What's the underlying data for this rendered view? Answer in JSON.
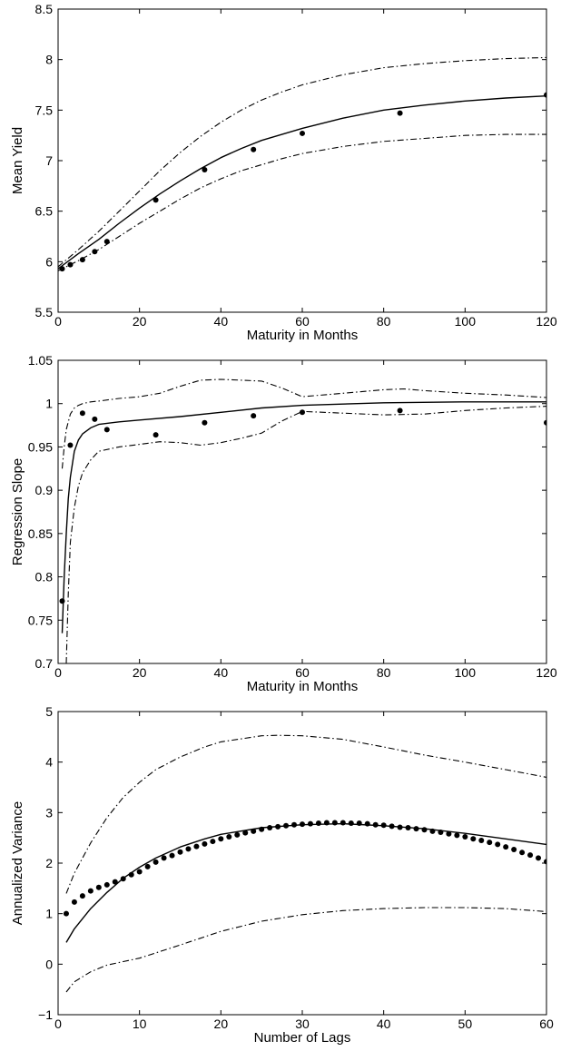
{
  "chart_data": [
    {
      "type": "line",
      "xlabel": "Maturity in Months",
      "ylabel": "Mean Yield",
      "xlim": [
        0,
        120
      ],
      "ylim": [
        5.5,
        8.5
      ],
      "xticks": [
        0,
        20,
        40,
        60,
        80,
        100,
        120
      ],
      "yticks": [
        5.5,
        6,
        6.5,
        7,
        7.5,
        8,
        8.5
      ],
      "xtick_labels": [
        "0",
        "20",
        "40",
        "60",
        "80",
        "100",
        "120"
      ],
      "ytick_labels": [
        "5.5",
        "6",
        "6.5",
        "7",
        "7.5",
        "8",
        "8.5"
      ],
      "series": [
        {
          "style": "solid",
          "x": [
            0,
            5,
            10,
            15,
            20,
            25,
            30,
            35,
            40,
            45,
            50,
            55,
            60,
            70,
            80,
            90,
            100,
            110,
            120
          ],
          "y": [
            5.93,
            6.08,
            6.22,
            6.38,
            6.53,
            6.67,
            6.8,
            6.92,
            7.03,
            7.12,
            7.2,
            7.26,
            7.32,
            7.42,
            7.5,
            7.55,
            7.59,
            7.62,
            7.64
          ]
        },
        {
          "style": "dashdot",
          "x": [
            0,
            5,
            10,
            15,
            20,
            25,
            30,
            35,
            40,
            45,
            50,
            55,
            60,
            70,
            80,
            90,
            100,
            110,
            120
          ],
          "y": [
            5.95,
            6.12,
            6.3,
            6.5,
            6.7,
            6.9,
            7.08,
            7.24,
            7.38,
            7.5,
            7.6,
            7.68,
            7.75,
            7.85,
            7.92,
            7.96,
            7.99,
            8.01,
            8.02
          ]
        },
        {
          "style": "dashdot",
          "x": [
            0,
            5,
            10,
            15,
            20,
            25,
            30,
            35,
            40,
            45,
            50,
            55,
            60,
            70,
            80,
            90,
            100,
            110,
            120
          ],
          "y": [
            5.91,
            6.01,
            6.12,
            6.25,
            6.38,
            6.5,
            6.62,
            6.73,
            6.82,
            6.9,
            6.96,
            7.02,
            7.07,
            7.14,
            7.19,
            7.22,
            7.25,
            7.26,
            7.26
          ]
        },
        {
          "style": "dots",
          "x": [
            1,
            3,
            6,
            9,
            12,
            24,
            36,
            48,
            60,
            84,
            120
          ],
          "y": [
            5.93,
            5.97,
            6.02,
            6.1,
            6.2,
            6.61,
            6.91,
            7.11,
            7.27,
            7.47,
            7.65
          ]
        }
      ]
    },
    {
      "type": "line",
      "xlabel": "Maturity in Months",
      "ylabel": "Regression Slope",
      "xlim": [
        0,
        120
      ],
      "ylim": [
        0.7,
        1.05
      ],
      "xticks": [
        0,
        20,
        40,
        60,
        80,
        100,
        120
      ],
      "yticks": [
        0.7,
        0.75,
        0.8,
        0.85,
        0.9,
        0.95,
        1,
        1.05
      ],
      "xtick_labels": [
        "0",
        "20",
        "40",
        "60",
        "80",
        "100",
        "120"
      ],
      "ytick_labels": [
        "0.7",
        "0.75",
        "0.8",
        "0.85",
        "0.9",
        "0.95",
        "1",
        "1.05"
      ],
      "series": [
        {
          "style": "solid",
          "x": [
            1,
            1.5,
            2,
            2.5,
            3,
            4,
            5,
            6,
            8,
            10,
            15,
            20,
            30,
            40,
            50,
            60,
            80,
            100,
            120
          ],
          "y": [
            0.735,
            0.8,
            0.85,
            0.89,
            0.915,
            0.945,
            0.958,
            0.965,
            0.972,
            0.976,
            0.979,
            0.981,
            0.985,
            0.99,
            0.995,
            0.998,
            1.001,
            1.002,
            1.002
          ]
        },
        {
          "style": "dashdot",
          "x": [
            1,
            1.5,
            2,
            3,
            4,
            5,
            6,
            8,
            10,
            15,
            20,
            25,
            30,
            35,
            40,
            45,
            50,
            55,
            60,
            70,
            80,
            85,
            90,
            100,
            110,
            120
          ],
          "y": [
            0.925,
            0.95,
            0.97,
            0.988,
            0.995,
            0.998,
            1.0,
            1.002,
            1.003,
            1.006,
            1.008,
            1.012,
            1.02,
            1.027,
            1.028,
            1.027,
            1.026,
            1.018,
            1.008,
            1.012,
            1.016,
            1.017,
            1.015,
            1.012,
            1.01,
            1.007
          ]
        },
        {
          "style": "dashdot",
          "x": [
            2,
            2.5,
            3,
            4,
            5,
            6,
            8,
            10,
            15,
            20,
            25,
            30,
            35,
            40,
            45,
            50,
            55,
            60,
            70,
            80,
            90,
            100,
            110,
            120
          ],
          "y": [
            0.7,
            0.78,
            0.84,
            0.88,
            0.905,
            0.92,
            0.935,
            0.945,
            0.95,
            0.953,
            0.956,
            0.955,
            0.952,
            0.955,
            0.96,
            0.966,
            0.98,
            0.991,
            0.989,
            0.987,
            0.988,
            0.992,
            0.995,
            0.997
          ]
        },
        {
          "style": "dots",
          "x": [
            1,
            3,
            6,
            9,
            12,
            24,
            36,
            48,
            60,
            84,
            120
          ],
          "y": [
            0.772,
            0.952,
            0.989,
            0.982,
            0.97,
            0.964,
            0.978,
            0.986,
            0.99,
            0.992,
            0.978
          ]
        }
      ]
    },
    {
      "type": "line",
      "xlabel": "Number of Lags",
      "ylabel": "Annualized Variance",
      "xlim": [
        0,
        60
      ],
      "ylim": [
        -1,
        5
      ],
      "xticks": [
        0,
        10,
        20,
        30,
        40,
        50,
        60
      ],
      "yticks": [
        -1,
        0,
        1,
        2,
        3,
        4,
        5
      ],
      "xtick_labels": [
        "0",
        "10",
        "20",
        "30",
        "40",
        "50",
        "60"
      ],
      "ytick_labels": [
        "−1",
        "0",
        "1",
        "2",
        "3",
        "4",
        "5"
      ],
      "series": [
        {
          "style": "solid",
          "x": [
            1,
            2,
            4,
            6,
            8,
            10,
            12,
            15,
            18,
            20,
            25,
            30,
            35,
            40,
            45,
            50,
            55,
            60
          ],
          "y": [
            0.43,
            0.7,
            1.1,
            1.42,
            1.7,
            1.92,
            2.1,
            2.32,
            2.48,
            2.57,
            2.7,
            2.76,
            2.78,
            2.74,
            2.68,
            2.59,
            2.48,
            2.37
          ]
        },
        {
          "style": "dashdot",
          "x": [
            1,
            2,
            4,
            6,
            8,
            10,
            12,
            15,
            18,
            20,
            25,
            27,
            30,
            35,
            40,
            45,
            50,
            55,
            60
          ],
          "y": [
            1.4,
            1.8,
            2.4,
            2.9,
            3.3,
            3.6,
            3.85,
            4.1,
            4.3,
            4.4,
            4.52,
            4.53,
            4.52,
            4.45,
            4.3,
            4.14,
            4.0,
            3.85,
            3.7
          ]
        },
        {
          "style": "dashdot",
          "x": [
            1,
            2,
            4,
            6,
            8,
            10,
            15,
            20,
            25,
            30,
            35,
            40,
            45,
            50,
            55,
            60
          ],
          "y": [
            -0.55,
            -0.35,
            -0.15,
            -0.02,
            0.05,
            0.12,
            0.38,
            0.65,
            0.85,
            0.98,
            1.06,
            1.1,
            1.12,
            1.12,
            1.1,
            1.04
          ]
        },
        {
          "style": "dots",
          "x": [
            1,
            2,
            3,
            4,
            5,
            6,
            7,
            8,
            9,
            10,
            11,
            12,
            13,
            14,
            15,
            16,
            17,
            18,
            19,
            20,
            21,
            22,
            23,
            24,
            25,
            26,
            27,
            28,
            29,
            30,
            31,
            32,
            33,
            34,
            35,
            36,
            37,
            38,
            39,
            40,
            41,
            42,
            43,
            44,
            45,
            46,
            47,
            48,
            49,
            50,
            51,
            52,
            53,
            54,
            55,
            56,
            57,
            58,
            59,
            60
          ],
          "y": [
            1.0,
            1.23,
            1.35,
            1.45,
            1.52,
            1.57,
            1.63,
            1.69,
            1.77,
            1.83,
            1.93,
            2.02,
            2.1,
            2.15,
            2.22,
            2.28,
            2.33,
            2.38,
            2.43,
            2.48,
            2.52,
            2.56,
            2.6,
            2.63,
            2.67,
            2.7,
            2.72,
            2.74,
            2.76,
            2.77,
            2.78,
            2.79,
            2.8,
            2.8,
            2.8,
            2.79,
            2.79,
            2.78,
            2.76,
            2.75,
            2.73,
            2.71,
            2.7,
            2.68,
            2.66,
            2.63,
            2.61,
            2.58,
            2.55,
            2.52,
            2.48,
            2.45,
            2.41,
            2.37,
            2.32,
            2.27,
            2.21,
            2.16,
            2.1,
            2.03
          ]
        }
      ]
    }
  ]
}
